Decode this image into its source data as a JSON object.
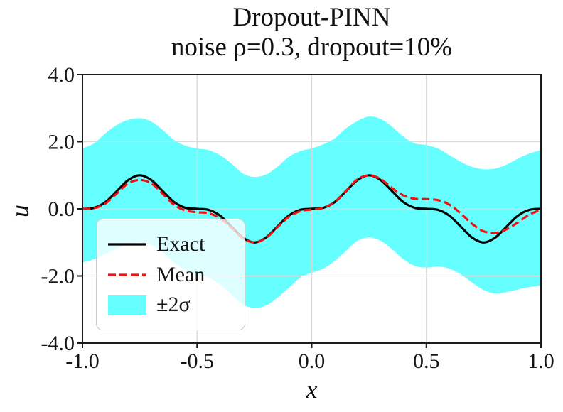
{
  "title": {
    "line1": "Dropout-PINN",
    "line2": "noise ρ=0.3, dropout=10%"
  },
  "legend": {
    "items": [
      {
        "label": "Exact",
        "type": "solid-line",
        "color": "#000000"
      },
      {
        "label": "Mean",
        "type": "dashed-line",
        "color": "#f50f0f"
      },
      {
        "label": "±2σ",
        "type": "band",
        "color": "#00ffff"
      }
    ]
  },
  "colors": {
    "exact_line": "#000000",
    "mean_line": "#f50f0f",
    "band_fill": "#00ffff",
    "band_opacity": 0.6,
    "grid": "#d9d9d9",
    "spine": "#1c1c1c",
    "background": "#ffffff"
  },
  "chart_data": {
    "type": "line",
    "title": "Dropout-PINN",
    "subtitle": "noise ρ=0.3, dropout=10%",
    "xlabel": "x",
    "ylabel": "u",
    "xlim": [
      -1.0,
      1.0
    ],
    "ylim": [
      -4.0,
      4.0
    ],
    "grid": true,
    "legend_position": "lower left",
    "x_ticks": [
      -1.0,
      -0.5,
      0.0,
      0.5,
      1.0
    ],
    "x_tick_labels": [
      "-1.0",
      "-0.5",
      "0.0",
      "0.5",
      "1.0"
    ],
    "y_ticks": [
      4.0,
      2.0,
      0.0,
      -2.0,
      -4.0
    ],
    "y_tick_labels": [
      "4.0",
      "2.0",
      "0.0",
      "-2.0",
      "-4.0"
    ],
    "x": [
      -1,
      -0.95,
      -0.9,
      -0.85,
      -0.8,
      -0.75,
      -0.7,
      -0.65,
      -0.6,
      -0.55,
      -0.5,
      -0.45,
      -0.4,
      -0.35,
      -0.3,
      -0.25,
      -0.2,
      -0.15,
      -0.1,
      -0.05,
      0,
      0.05,
      0.1,
      0.15,
      0.2,
      0.25,
      0.3,
      0.35,
      0.4,
      0.45,
      0.5,
      0.55,
      0.6,
      0.65,
      0.7,
      0.75,
      0.8,
      0.85,
      0.9,
      0.95,
      1
    ],
    "series": [
      {
        "name": "Exact",
        "style": "solid",
        "color": "#000000",
        "values": [
          0,
          0.03,
          0.2,
          0.53,
          0.86,
          1,
          0.86,
          0.53,
          0.2,
          0.03,
          0,
          -0.03,
          -0.2,
          -0.53,
          -0.86,
          -1,
          -0.86,
          -0.53,
          -0.2,
          -0.03,
          0,
          0.03,
          0.2,
          0.53,
          0.86,
          1,
          0.86,
          0.53,
          0.2,
          0.03,
          0,
          -0.03,
          -0.2,
          -0.53,
          -0.86,
          -1,
          -0.86,
          -0.53,
          -0.2,
          -0.03,
          0
        ]
      },
      {
        "name": "Mean",
        "style": "dashed",
        "color": "#f50f0f",
        "values": [
          0,
          0.02,
          0.16,
          0.46,
          0.76,
          0.86,
          0.76,
          0.45,
          0.12,
          -0.05,
          -0.1,
          -0.13,
          -0.28,
          -0.57,
          -0.88,
          -1,
          -0.87,
          -0.55,
          -0.24,
          -0.07,
          -0.02,
          0.03,
          0.21,
          0.54,
          0.88,
          1,
          0.89,
          0.62,
          0.4,
          0.3,
          0.29,
          0.26,
          0.13,
          -0.14,
          -0.45,
          -0.67,
          -0.72,
          -0.61,
          -0.4,
          -0.17,
          -0.03
        ]
      },
      {
        "name": "±2σ",
        "style": "band",
        "color": "#00ffff",
        "opacity": 0.6,
        "upper": [
          1.8,
          1.95,
          2.25,
          2.5,
          2.65,
          2.7,
          2.6,
          2.35,
          2.05,
          1.88,
          1.8,
          1.75,
          1.6,
          1.35,
          1.05,
          0.95,
          1.02,
          1.25,
          1.55,
          1.72,
          1.8,
          1.92,
          2.1,
          2.4,
          2.62,
          2.75,
          2.68,
          2.45,
          2.15,
          1.95,
          1.9,
          1.8,
          1.6,
          1.4,
          1.25,
          1.18,
          1.2,
          1.32,
          1.5,
          1.65,
          1.75
        ],
        "lower": [
          -1.6,
          -1.5,
          -1.35,
          -1.18,
          -1.05,
          -1,
          -1.08,
          -1.3,
          -1.6,
          -1.82,
          -1.95,
          -2.05,
          -2.25,
          -2.55,
          -2.85,
          -2.95,
          -2.88,
          -2.65,
          -2.35,
          -2.05,
          -1.9,
          -1.78,
          -1.55,
          -1.25,
          -0.95,
          -0.85,
          -0.95,
          -1.2,
          -1.5,
          -1.7,
          -1.75,
          -1.72,
          -1.78,
          -1.95,
          -2.2,
          -2.42,
          -2.52,
          -2.48,
          -2.4,
          -2.33,
          -2.28
        ]
      }
    ]
  }
}
